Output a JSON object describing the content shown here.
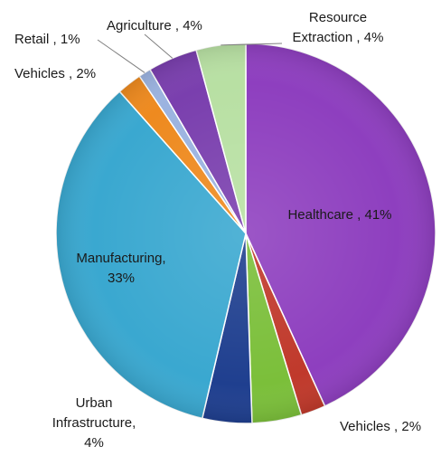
{
  "chart_data": {
    "type": "pie",
    "title": "",
    "slices": [
      {
        "label": "Healthcare",
        "value": 41,
        "display": "Healthcare , 41%",
        "color": "#8e3fbf"
      },
      {
        "label": "Vehicles",
        "value": 2,
        "display": "Vehicles , 2%",
        "color": "#c0392b"
      },
      {
        "label": "Unlabeled",
        "value": 4,
        "display": "",
        "color": "#7bbf3a"
      },
      {
        "label": "Urban Infrastructure",
        "value": 4,
        "display": "Urban Infrastructure, 4%",
        "color": "#1f3f8f"
      },
      {
        "label": "Manufacturing",
        "value": 33,
        "display": "Manufacturing, 33%",
        "color": "#3aa8d0"
      },
      {
        "label": "Vehicles",
        "value": 2,
        "display": "Vehicles , 2%",
        "color": "#ee8a1f"
      },
      {
        "label": "Retail",
        "value": 1,
        "display": "Retail , 1%",
        "color": "#9bb3e0"
      },
      {
        "label": "Agriculture",
        "value": 4,
        "display": "Agriculture , 4%",
        "color": "#7a3fae"
      },
      {
        "label": "Resource Extraction",
        "value": 4,
        "display": "Resource Extraction , 4%",
        "color": "#b8e0a3"
      }
    ]
  }
}
